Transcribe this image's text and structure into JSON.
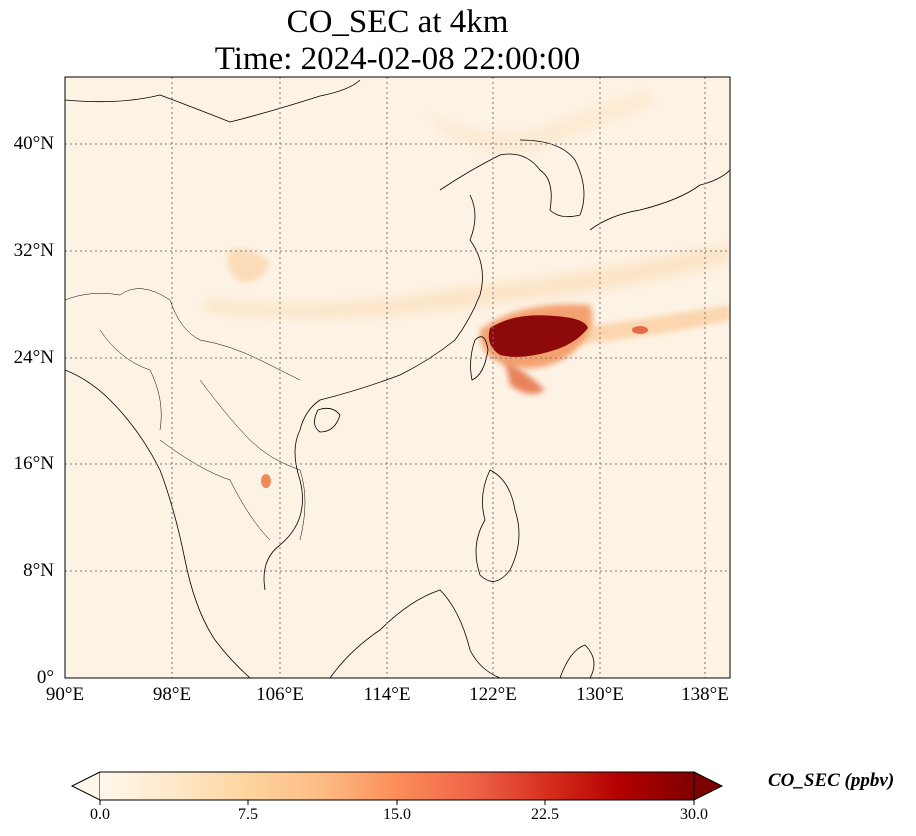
{
  "title": {
    "line1": "CO_SEC at 4km",
    "line2": "Time: 2024-02-08 22:00:00"
  },
  "map": {
    "projection": "PlateCarree",
    "lon_range": [
      90,
      139
    ],
    "lat_range": [
      0,
      45
    ],
    "gridlines": "dotted",
    "lat_ticks": [
      "40°N",
      "32°N",
      "24°N",
      "16°N",
      "8°N",
      "0°"
    ],
    "lon_ticks": [
      "90°E",
      "98°E",
      "106°E",
      "114°E",
      "122°E",
      "130°E",
      "138°E"
    ],
    "features": [
      "coastlines",
      "country-borders"
    ]
  },
  "colorbar": {
    "label": "CO_SEC (ppbv)",
    "colormap": "OrRd",
    "min": 0.0,
    "max": 30.0,
    "extend": "both",
    "ticks": [
      "0.0",
      "7.5",
      "15.0",
      "22.5",
      "30.0"
    ],
    "colors": [
      "#fff7ec",
      "#fee8c8",
      "#fdd49e",
      "#fdbb84",
      "#fc8d59",
      "#ef6548",
      "#d7301f",
      "#b30000",
      "#7f0000"
    ]
  }
}
